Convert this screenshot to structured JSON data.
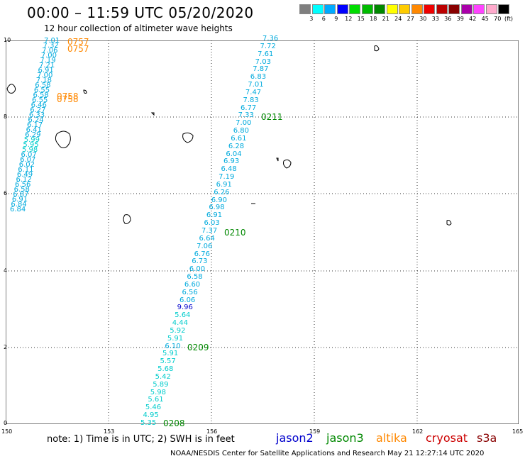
{
  "title": "00:00 – 11:59 UTC 05/20/2020",
  "subtitle": "12 hour collection of altimeter wave heights",
  "legend": {
    "colors": [
      "#7f7f7f",
      "#00ffff",
      "#00aaff",
      "#0000ff",
      "#00dd00",
      "#00bb00",
      "#008800",
      "#ffff00",
      "#ffcc00",
      "#ff8800",
      "#ee0000",
      "#bb0000",
      "#880000",
      "#aa00aa",
      "#ff44ff",
      "#ffaacc",
      "#000000"
    ],
    "labels": [
      "3",
      "6",
      "9",
      "12",
      "15",
      "18",
      "21",
      "24",
      "27",
      "30",
      "33",
      "36",
      "39",
      "42",
      "45",
      "70"
    ],
    "unit": "(ft)"
  },
  "axes": {
    "y_ticks": [
      "10",
      "8",
      "6",
      "4",
      "2",
      "0"
    ],
    "x_ticks": [
      "150",
      "153",
      "156",
      "159",
      "162",
      "165"
    ]
  },
  "tracks": [
    {
      "name": "track-0757",
      "pass_label": "0757",
      "pass_color": "#ff8800",
      "values": [
        "7.01",
        "7.32",
        "7.06",
        "7.00",
        "7.19",
        "7.21",
        "6.91",
        "7.00",
        "7.18",
        "6.58",
        "6.55",
        "6.58",
        "6.55",
        "6.46",
        "6.27",
        "6.33",
        "6.24",
        "6.17",
        "6.41",
        "6.29",
        "5.99",
        "5.95",
        "5.98",
        "6.07",
        "6.07",
        "6.02",
        "6.11",
        "6.49",
        "6.12",
        "6.56",
        "6.58",
        "6.87",
        "6.91",
        "6.84",
        "6.84"
      ]
    },
    {
      "name": "track-0758",
      "pass_label": "0758",
      "pass_color": "#ff8800",
      "values": []
    },
    {
      "name": "track-east",
      "pass_label": "0211",
      "pass_color": "#008800",
      "values": [
        "7.36",
        "7.72",
        "7.61",
        "7.03",
        "7.87",
        "6.83",
        "7.01",
        "7.47",
        "7.83",
        "6.77",
        "7.33",
        "7.00",
        "6.80",
        "6.61",
        "6.28",
        "6.04",
        "6.93",
        "6.48",
        "7.19",
        "6.91",
        "6.26",
        "6.90",
        "6.98",
        "6.91",
        "6.03",
        "7.37",
        "6.64",
        "7.06",
        "6.76",
        "6.73",
        "6.00",
        "6.58",
        "6.60",
        "6.56",
        "6.06",
        "9.96",
        "5.64",
        "4.44",
        "5.92",
        "5.91",
        "6.10",
        "5.91",
        "5.57",
        "5.68",
        "5.42",
        "5.89",
        "5.98",
        "5.61",
        "5.46",
        "4.95",
        "5.35"
      ]
    }
  ],
  "pass_labels": [
    "0211",
    "0210",
    "0209",
    "0208"
  ],
  "note": "note:  1) Time is in UTC;  2) SWH is in feet",
  "satellites": [
    {
      "name": "jason2",
      "color": "#0000cc"
    },
    {
      "name": "jason3",
      "color": "#008800"
    },
    {
      "name": "altika",
      "color": "#ff8800"
    },
    {
      "name": "cryosat",
      "color": "#cc0000"
    },
    {
      "name": "s3a",
      "color": "#880000"
    }
  ],
  "footer": "NOAA/NESDIS Center for Satellite Applications and Research     May 21 12:27:14 UTC 2020"
}
